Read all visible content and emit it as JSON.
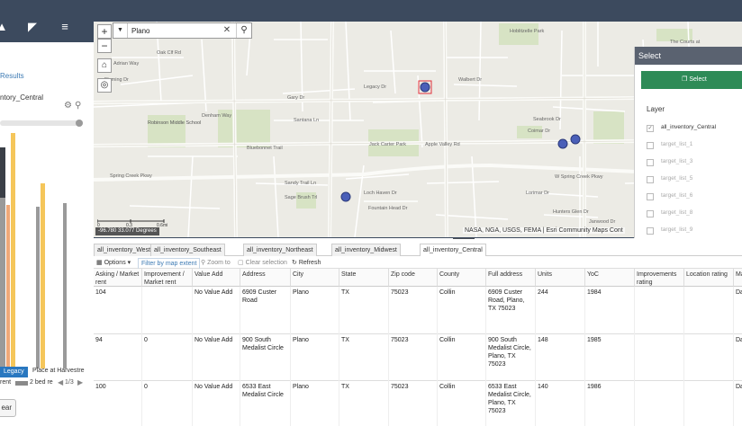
{
  "left_panel": {
    "results_label": "Results",
    "layer_label": "ntory_Central",
    "chart_category_1": "Legacy",
    "chart_category_2": "Place at Harvestre",
    "legend_rent": "rent",
    "legend_2bed": "2 bed re",
    "pager": "1/3",
    "clear_label": "ear"
  },
  "map": {
    "search_value": "Plano",
    "coordinates": "-96.780 33.077 Degrees",
    "attribution": "NASA, NGA, USGS, FEMA | Esri Community Maps Cont",
    "scale_labels": [
      "0",
      "0.3",
      "0.6mi"
    ],
    "road_labels": [
      "Hoblitzelle Park",
      "The Courts at",
      "Oak Clf Rd",
      "Adrian Way",
      "Fleming Dr",
      "Legacy Dr",
      "Walbert Dr",
      "Gary Dr",
      "Santana Ln",
      "Robinson Middle School",
      "Denham Way",
      "Seabrook Dr",
      "Coimar Dr",
      "Jack Carter Park",
      "Apple Valley Rd",
      "Bluebonnet Trail",
      "Spring Creek Pkwy",
      "W Spring Creek Pkwy",
      "Sandy Trail Ln",
      "Sage Brush Trl",
      "Loch Haven Dr",
      "Fountain Head Dr",
      "Hunters Glen Dr",
      "Lorimar Dr",
      "Janwood Dr"
    ]
  },
  "select_panel": {
    "title": "Select",
    "button": "Select",
    "layer_title": "Layer",
    "layers": [
      {
        "name": "all_inventory_Central",
        "checked": true
      },
      {
        "name": "target_list_1",
        "checked": false
      },
      {
        "name": "target_list_3",
        "checked": false
      },
      {
        "name": "target_list_5",
        "checked": false
      },
      {
        "name": "target_list_6",
        "checked": false
      },
      {
        "name": "target_list_8",
        "checked": false
      },
      {
        "name": "target_list_9",
        "checked": false
      }
    ]
  },
  "table": {
    "tabs": [
      "all_inventory_West",
      "all_inventory_Southeast",
      "all_inventory_Northeast",
      "all_inventory_Midwest",
      "all_inventory_Central"
    ],
    "active_tab": 4,
    "toolbar": {
      "options": "Options",
      "filter": "Filter by map extent",
      "zoom": "Zoom to",
      "clear": "Clear selection",
      "refresh": "Refresh"
    },
    "headers": [
      "Asking / Market rent",
      "Improvement / Market rent",
      "Value Add",
      "Address",
      "City",
      "State",
      "Zip code",
      "County",
      "Full address",
      "Units",
      "YoC",
      "Improvements rating",
      "Location rating",
      "Ma"
    ],
    "rows": [
      [
        "104",
        "",
        "No Value Add",
        "6909 Custer Road",
        "Plano",
        "TX",
        "75023",
        "Collin",
        "6909 Custer Road, Plano, TX 75023",
        "244",
        "1984",
        "",
        "",
        "Da"
      ],
      [
        "94",
        "0",
        "No Value Add",
        "900 South Medalist Circle",
        "Plano",
        "TX",
        "75023",
        "Collin",
        "900 South Medalist Circle, Plano, TX 75023",
        "148",
        "1985",
        "",
        "",
        "Da"
      ],
      [
        "100",
        "0",
        "No Value Add",
        "6533 East Medalist Circle",
        "Plano",
        "TX",
        "75023",
        "Collin",
        "6533 East Medalist Circle, Plano, TX 75023",
        "140",
        "1986",
        "",
        "",
        "Da"
      ]
    ]
  },
  "colors": {
    "topbar": "#3c4a5e",
    "select_header": "#5a6270",
    "select_button": "#2e8b57",
    "marker": "#4a5fb8",
    "chart_orange": "#f0a878",
    "chart_yellow": "#f5c65a",
    "chart_gray": "#9a9a9a"
  }
}
